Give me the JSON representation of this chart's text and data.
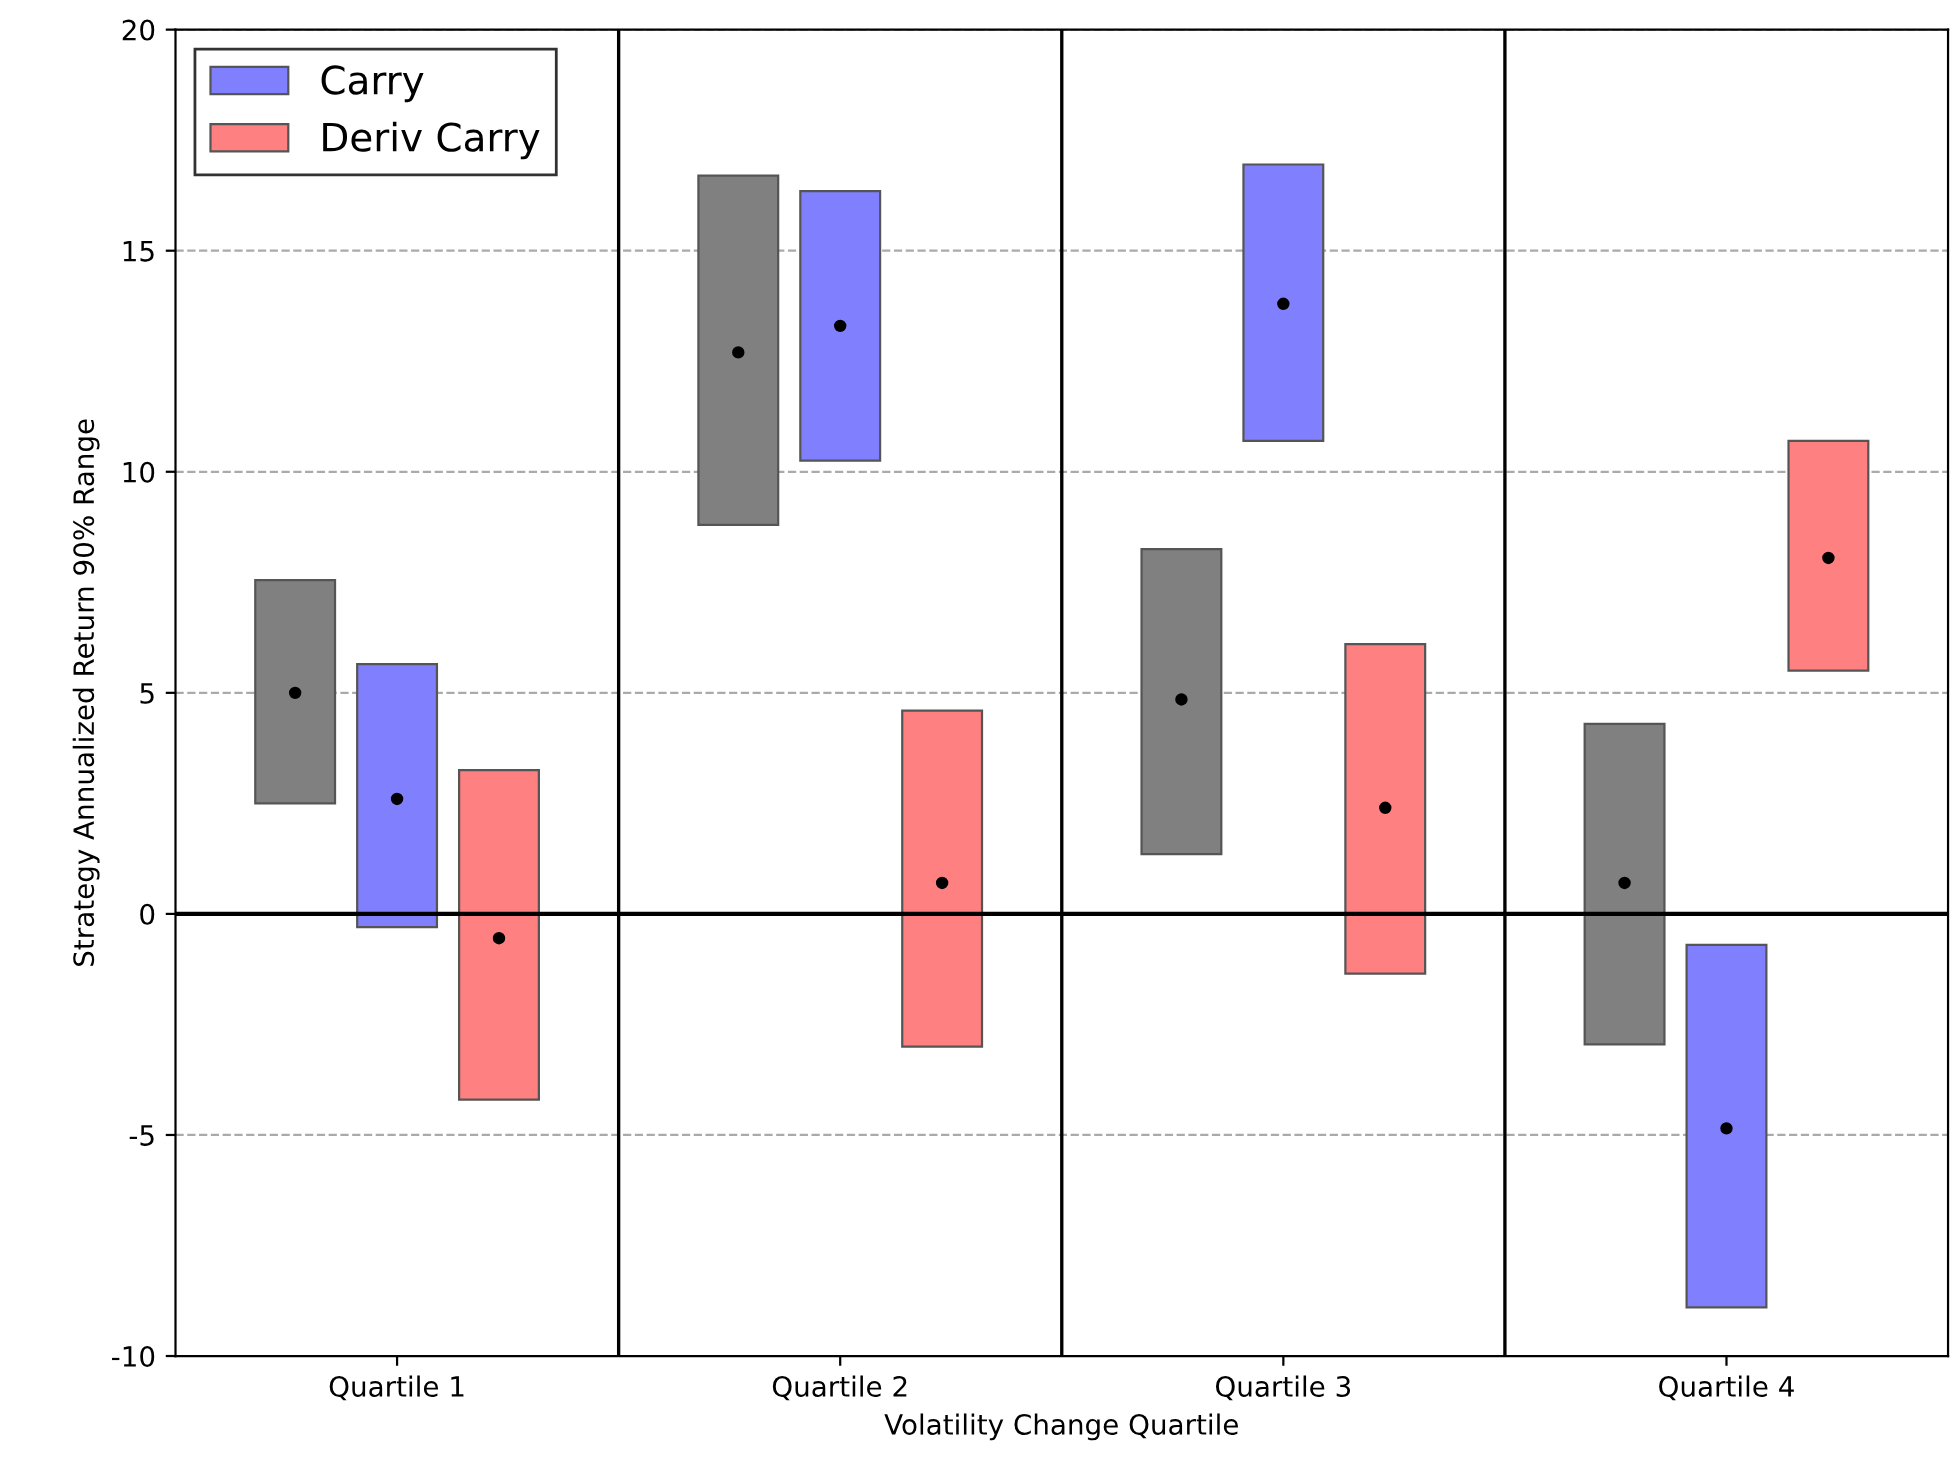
{
  "chart_data": {
    "type": "bar",
    "xlabel": "Volatility Change Quartile",
    "ylabel": "Strategy Annualized Return 90% Range",
    "categories": [
      "Quartile 1",
      "Quartile 2",
      "Quartile 3",
      "Quartile 4"
    ],
    "series": [
      {
        "color": "#808080",
        "base": [
          2.5,
          8.8,
          1.35,
          -2.95
        ],
        "values": [
          5.05,
          7.9,
          6.9,
          7.25
        ]
      },
      {
        "name": "Carry",
        "color": "#8080ff",
        "base": [
          -0.3,
          10.25,
          10.7,
          -8.9
        ],
        "values": [
          5.95,
          6.1,
          6.25,
          8.2
        ]
      },
      {
        "name": "Deriv Carry",
        "color": "#ff8080",
        "base": [
          -4.2,
          -3.0,
          -1.35,
          5.5
        ],
        "values": [
          7.45,
          7.6,
          7.45,
          5.2
        ]
      },
      {
        "type": "scatter",
        "color": "#000000",
        "marker": "circle",
        "x": [
          "Quartile 1",
          "Quartile 2",
          "Quartile 3",
          "Quartile 4"
        ],
        "values": [
          5.0,
          12.7,
          4.85,
          0.7
        ]
      },
      {
        "type": "scatter",
        "color": "#000000",
        "marker": "circle",
        "x": [
          "Quartile 1",
          "Quartile 2",
          "Quartile 3",
          "Quartile 4"
        ],
        "values": [
          2.6,
          13.3,
          13.8,
          -4.85
        ]
      },
      {
        "type": "scatter",
        "color": "#000000",
        "marker": "circle",
        "x": [
          "Quartile 1",
          "Quartile 2",
          "Quartile 3",
          "Quartile 4"
        ],
        "values": [
          -0.55,
          0.7,
          2.4,
          8.05
        ]
      }
    ],
    "ylim": [
      -10,
      20
    ],
    "yticks": [
      -10,
      -5,
      0,
      5,
      10,
      15,
      20
    ],
    "grid": "y",
    "legend": "top left",
    "ref_lines": [
      {
        "axis": "y",
        "value": 0,
        "color": "#000000"
      }
    ]
  }
}
